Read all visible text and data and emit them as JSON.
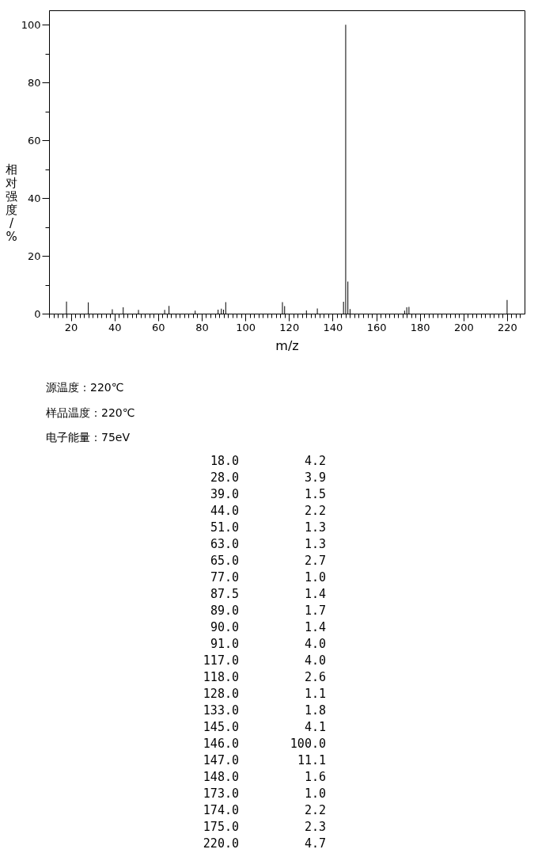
{
  "chart_data": [
    {
      "type": "bar",
      "xlabel": "m/z",
      "ylabel": "相对强度/%",
      "x": [
        18.0,
        28.0,
        39.0,
        44.0,
        51.0,
        63.0,
        65.0,
        77.0,
        87.5,
        89.0,
        90.0,
        91.0,
        117.0,
        118.0,
        128.0,
        133.0,
        145.0,
        146.0,
        147.0,
        148.0,
        173.0,
        174.0,
        175.0,
        220.0
      ],
      "values": [
        4.2,
        3.9,
        1.5,
        2.2,
        1.3,
        1.3,
        2.7,
        1.0,
        1.4,
        1.7,
        1.4,
        4.0,
        4.0,
        2.6,
        1.1,
        1.8,
        4.1,
        100.0,
        11.1,
        1.6,
        1.0,
        2.2,
        2.3,
        4.7
      ],
      "color": "#000000",
      "xlim": [
        10,
        228
      ],
      "xticks": [
        {
          "value": 10,
          "label": null
        },
        {
          "value": 12,
          "label": null
        },
        {
          "value": 14,
          "label": null
        },
        {
          "value": 16,
          "label": null
        },
        {
          "value": 18,
          "label": null
        },
        20,
        {
          "value": 22,
          "label": null
        },
        {
          "value": 24,
          "label": null
        },
        {
          "value": 26,
          "label": null
        },
        {
          "value": 28,
          "label": null
        },
        {
          "value": 30,
          "label": null
        },
        {
          "value": 32,
          "label": null
        },
        {
          "value": 34,
          "label": null
        },
        {
          "value": 36,
          "label": null
        },
        {
          "value": 38,
          "label": null
        },
        40,
        {
          "value": 42,
          "label": null
        },
        {
          "value": 44,
          "label": null
        },
        {
          "value": 46,
          "label": null
        },
        {
          "value": 48,
          "label": null
        },
        {
          "value": 50,
          "label": null
        },
        {
          "value": 52,
          "label": null
        },
        {
          "value": 54,
          "label": null
        },
        {
          "value": 56,
          "label": null
        },
        {
          "value": 58,
          "label": null
        },
        60,
        {
          "value": 62,
          "label": null
        },
        {
          "value": 64,
          "label": null
        },
        {
          "value": 66,
          "label": null
        },
        {
          "value": 68,
          "label": null
        },
        {
          "value": 70,
          "label": null
        },
        {
          "value": 72,
          "label": null
        },
        {
          "value": 74,
          "label": null
        },
        {
          "value": 76,
          "label": null
        },
        {
          "value": 78,
          "label": null
        },
        80,
        {
          "value": 82,
          "label": null
        },
        {
          "value": 84,
          "label": null
        },
        {
          "value": 86,
          "label": null
        },
        {
          "value": 88,
          "label": null
        },
        {
          "value": 90,
          "label": null
        },
        {
          "value": 92,
          "label": null
        },
        {
          "value": 94,
          "label": null
        },
        {
          "value": 96,
          "label": null
        },
        {
          "value": 98,
          "label": null
        },
        100,
        {
          "value": 102,
          "label": null
        },
        {
          "value": 104,
          "label": null
        },
        {
          "value": 106,
          "label": null
        },
        {
          "value": 108,
          "label": null
        },
        {
          "value": 110,
          "label": null
        },
        {
          "value": 112,
          "label": null
        },
        {
          "value": 114,
          "label": null
        },
        {
          "value": 116,
          "label": null
        },
        {
          "value": 118,
          "label": null
        },
        120,
        {
          "value": 122,
          "label": null
        },
        {
          "value": 124,
          "label": null
        },
        {
          "value": 126,
          "label": null
        },
        {
          "value": 128,
          "label": null
        },
        {
          "value": 130,
          "label": null
        },
        {
          "value": 132,
          "label": null
        },
        {
          "value": 134,
          "label": null
        },
        {
          "value": 136,
          "label": null
        },
        {
          "value": 138,
          "label": null
        },
        140,
        {
          "value": 142,
          "label": null
        },
        {
          "value": 144,
          "label": null
        },
        {
          "value": 146,
          "label": null
        },
        {
          "value": 148,
          "label": null
        },
        {
          "value": 150,
          "label": null
        },
        {
          "value": 152,
          "label": null
        },
        {
          "value": 154,
          "label": null
        },
        {
          "value": 156,
          "label": null
        },
        {
          "value": 158,
          "label": null
        },
        160,
        {
          "value": 162,
          "label": null
        },
        {
          "value": 164,
          "label": null
        },
        {
          "value": 166,
          "label": null
        },
        {
          "value": 168,
          "label": null
        },
        {
          "value": 170,
          "label": null
        },
        {
          "value": 172,
          "label": null
        },
        {
          "value": 174,
          "label": null
        },
        {
          "value": 176,
          "label": null
        },
        {
          "value": 178,
          "label": null
        },
        180,
        {
          "value": 182,
          "label": null
        },
        {
          "value": 184,
          "label": null
        },
        {
          "value": 186,
          "label": null
        },
        {
          "value": 188,
          "label": null
        },
        {
          "value": 190,
          "label": null
        },
        {
          "value": 192,
          "label": null
        },
        {
          "value": 194,
          "label": null
        },
        {
          "value": 196,
          "label": null
        },
        {
          "value": 198,
          "label": null
        },
        200,
        {
          "value": 202,
          "label": null
        },
        {
          "value": 204,
          "label": null
        },
        {
          "value": 206,
          "label": null
        },
        {
          "value": 208,
          "label": null
        },
        {
          "value": 210,
          "label": null
        },
        {
          "value": 212,
          "label": null
        },
        {
          "value": 214,
          "label": null
        },
        {
          "value": 216,
          "label": null
        },
        {
          "value": 218,
          "label": null
        },
        220,
        {
          "value": 222,
          "label": null
        },
        {
          "value": 224,
          "label": null
        },
        {
          "value": 226,
          "label": null
        }
      ],
      "ylim": [
        0,
        105
      ],
      "yticks": [
        0,
        {
          "value": 10,
          "label": null
        },
        20,
        {
          "value": 30,
          "label": null
        },
        40,
        {
          "value": 50,
          "label": null
        },
        60,
        {
          "value": 70,
          "label": null
        },
        80,
        {
          "value": 90,
          "label": null
        },
        100
      ],
      "annotations": [
        "源温度：220℃",
        "样品温度：220℃",
        "电子能量：75eV"
      ]
    },
    {
      "type": "other",
      "categories": [
        "18.0",
        "28.0",
        "39.0",
        "44.0",
        "51.0",
        "63.0",
        "65.0",
        "77.0",
        "87.5",
        "89.0",
        "90.0",
        "91.0",
        "117.0",
        "118.0",
        "128.0",
        "133.0",
        "145.0",
        "146.0",
        "147.0",
        "148.0",
        "173.0",
        "174.0",
        "175.0",
        "220.0"
      ],
      "values": [
        4.2,
        3.9,
        1.5,
        2.2,
        1.3,
        1.3,
        2.7,
        1.0,
        1.4,
        1.7,
        1.4,
        4.0,
        4.0,
        2.6,
        1.1,
        1.8,
        4.1,
        100.0,
        11.1,
        1.6,
        1.0,
        2.2,
        2.3,
        4.7
      ],
      "value_labels": [
        "4.2",
        "3.9",
        "1.5",
        "2.2",
        "1.3",
        "1.3",
        "2.7",
        "1.0",
        "1.4",
        "1.7",
        "1.4",
        "4.0",
        "4.0",
        "2.6",
        "1.1",
        "1.8",
        "4.1",
        "100.0",
        "11.1",
        "1.6",
        "1.0",
        "2.2",
        "2.3",
        "4.7"
      ]
    }
  ]
}
